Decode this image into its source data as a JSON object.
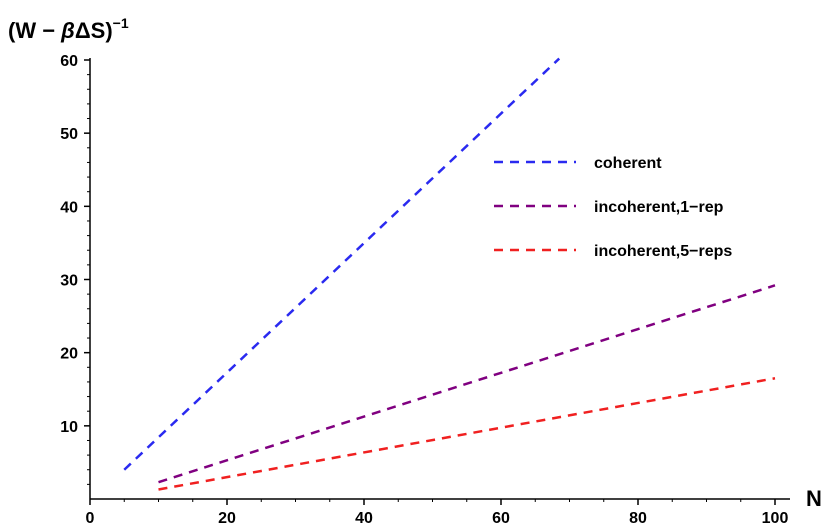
{
  "chart_data": {
    "type": "line",
    "title": "",
    "xlabel": "N",
    "ylabel": {
      "base": "(W − ",
      "beta": "β",
      "rest": "ΔS)",
      "sup": "−1"
    },
    "xlim": [
      0,
      100
    ],
    "ylim": [
      0,
      60
    ],
    "xticks": [
      0,
      20,
      40,
      60,
      80,
      100
    ],
    "yticks": [
      10,
      20,
      30,
      40,
      50,
      60
    ],
    "grid": false,
    "legend_position": "right",
    "series": [
      {
        "name": "coherent",
        "color": "#2a2af0",
        "dash": true,
        "x": [
          5,
          68.5
        ],
        "y": [
          4,
          60.2
        ]
      },
      {
        "name": "incoherent,1−rep",
        "color": "#800080",
        "dash": true,
        "x": [
          10,
          100
        ],
        "y": [
          2.3,
          29.2
        ]
      },
      {
        "name": "incoherent,5−reps",
        "color": "#f02020",
        "dash": true,
        "x": [
          10,
          100
        ],
        "y": [
          1.3,
          16.5
        ]
      }
    ]
  }
}
